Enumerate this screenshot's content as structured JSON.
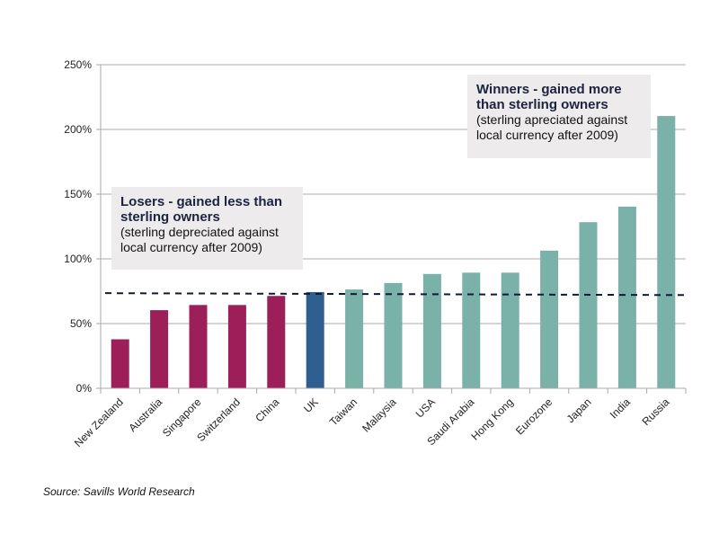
{
  "chart_data": {
    "type": "bar",
    "categories": [
      "New Zealand",
      "Australia",
      "Singapore",
      "Switzerland",
      "China",
      "UK",
      "Taiwan",
      "Malaysia",
      "USA",
      "Saudi Arabia",
      "Hong Kong",
      "Eurozone",
      "Japan",
      "India",
      "Russia"
    ],
    "values": [
      37.5,
      60,
      64,
      64,
      71,
      74,
      76,
      81,
      88,
      89,
      89,
      106,
      128,
      140,
      210
    ],
    "groups": [
      "loser",
      "loser",
      "loser",
      "loser",
      "loser",
      "uk",
      "winner",
      "winner",
      "winner",
      "winner",
      "winner",
      "winner",
      "winner",
      "winner",
      "winner"
    ],
    "colors": {
      "loser": "#9c1f5a",
      "uk": "#2f5f8f",
      "winner": "#7ab1a8"
    },
    "ylim": [
      0,
      250
    ],
    "yticks": [
      0,
      50,
      100,
      150,
      200,
      250
    ],
    "ytick_labels": [
      "0%",
      "50%",
      "100%",
      "150%",
      "200%",
      "250%"
    ],
    "grid": true,
    "reference_line": {
      "style": "dashed",
      "start": 73.5,
      "end": 72
    },
    "annotations": {
      "losers": {
        "title": "Losers - gained less than sterling owners",
        "body": "(sterling depreciated against local currency after 2009)"
      },
      "winners": {
        "title": "Winners - gained more than sterling owners",
        "body": "(sterling apreciated against local currency after 2009)"
      }
    },
    "title": "",
    "xlabel": "",
    "ylabel": ""
  },
  "source": "Source: Savills World Research"
}
